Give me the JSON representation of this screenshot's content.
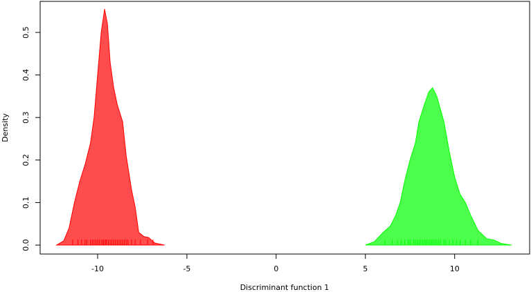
{
  "chart_data": {
    "type": "density",
    "x_label": "Discriminant function 1",
    "y_label": "Density",
    "xlim": [
      -13.22,
      14.2
    ],
    "ylim": [
      -0.021,
      0.573
    ],
    "xticks": [
      -10,
      -5,
      0,
      5,
      10
    ],
    "yticks": [
      {
        "value": 0,
        "label": "0.0"
      },
      0.1,
      0.2,
      0.3,
      0.4,
      0.5
    ],
    "series": [
      {
        "color": "#ff0000",
        "x": [
          -12.3,
          -11.9,
          -11.6,
          -11.3,
          -11.0,
          -10.7,
          -10.4,
          -10.2,
          -10.0,
          -9.8,
          -9.61,
          -9.45,
          -9.3,
          -9.1,
          -8.9,
          -8.6,
          -8.4,
          -8.1,
          -7.9,
          -7.7,
          -7.4,
          -7.15,
          -6.8,
          -6.24
        ],
        "values": [
          0,
          0.01,
          0.04,
          0.1,
          0.15,
          0.19,
          0.24,
          0.3,
          0.4,
          0.5,
          0.555,
          0.52,
          0.43,
          0.37,
          0.33,
          0.29,
          0.21,
          0.13,
          0.09,
          0.03,
          0.02,
          0.018,
          0.005,
          0
        ],
        "rug": [
          -11.4,
          -11.1,
          -10.9,
          -10.7,
          -10.6,
          -10.4,
          -10.3,
          -10.2,
          -10.1,
          -10.0,
          -9.9,
          -9.8,
          -9.7,
          -9.65,
          -9.55,
          -9.5,
          -9.4,
          -9.3,
          -9.2,
          -9.1,
          -9.0,
          -8.9,
          -8.8,
          -8.7,
          -8.6,
          -8.5,
          -8.4,
          -8.3,
          -8.1,
          -7.9,
          -7.6,
          -7.2,
          -6.9
        ]
      },
      {
        "color": "#00ff00",
        "x": [
          5.0,
          5.5,
          6.0,
          6.4,
          6.7,
          6.95,
          7.2,
          7.5,
          7.8,
          8.0,
          8.3,
          8.55,
          8.76,
          9.0,
          9.2,
          9.4,
          9.7,
          10.0,
          10.3,
          10.6,
          10.9,
          11.3,
          11.8,
          12.2,
          12.6,
          13.2
        ],
        "values": [
          0,
          0.008,
          0.03,
          0.045,
          0.07,
          0.1,
          0.15,
          0.2,
          0.24,
          0.29,
          0.33,
          0.36,
          0.37,
          0.35,
          0.32,
          0.29,
          0.22,
          0.16,
          0.12,
          0.1,
          0.07,
          0.035,
          0.015,
          0.012,
          0.004,
          0
        ],
        "rug": [
          6.1,
          6.5,
          6.8,
          7.0,
          7.2,
          7.4,
          7.5,
          7.7,
          7.8,
          7.9,
          8.0,
          8.1,
          8.2,
          8.3,
          8.4,
          8.5,
          8.6,
          8.7,
          8.8,
          8.9,
          9.0,
          9.1,
          9.2,
          9.4,
          9.5,
          9.7,
          9.9,
          10.1,
          10.3,
          10.6,
          10.9,
          11.3
        ]
      }
    ]
  }
}
